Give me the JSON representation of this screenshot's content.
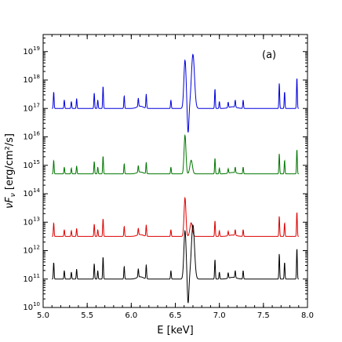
{
  "chart_data": {
    "type": "line",
    "panel_label": "(a)",
    "xlabel": "E [keV]",
    "ylabel_main": "νF",
    "ylabel_sub": "ν",
    "ylabel_unit": " [erg/cm²/s]",
    "xlim": [
      5.0,
      8.0
    ],
    "ylim_log10": [
      10,
      19.6
    ],
    "yscale": "log",
    "grid": false,
    "x_ticks": [
      5.0,
      5.5,
      6.0,
      6.5,
      7.0,
      7.5,
      8.0
    ],
    "x_tick_labels": [
      "5.0",
      "5.5",
      "6.0",
      "6.5",
      "7.0",
      "7.5",
      "8.0"
    ],
    "y_ticks_log10": [
      10,
      11,
      12,
      13,
      14,
      15,
      16,
      17,
      18,
      19
    ],
    "y_tick_base": "10",
    "y_tick_exps": [
      "10",
      "11",
      "12",
      "13",
      "14",
      "15",
      "16",
      "17",
      "18",
      "19"
    ],
    "peak_shape": {
      "narrow": [
        {
          "x": 5.12,
          "h": 0.6
        },
        {
          "x": 5.24,
          "h": 0.3
        },
        {
          "x": 5.32,
          "h": 0.25
        },
        {
          "x": 5.38,
          "h": 0.35
        },
        {
          "x": 5.58,
          "h": 0.55
        },
        {
          "x": 5.62,
          "h": 0.3
        },
        {
          "x": 5.68,
          "h": 0.8
        },
        {
          "x": 5.92,
          "h": 0.45
        },
        {
          "x": 6.08,
          "h": 0.3
        },
        {
          "x": 6.17,
          "h": 0.5
        },
        {
          "x": 6.45,
          "h": 0.3
        },
        {
          "x": 6.95,
          "h": 0.7
        },
        {
          "x": 7.0,
          "h": 0.25
        },
        {
          "x": 7.1,
          "h": 0.2
        },
        {
          "x": 7.18,
          "h": 0.25
        },
        {
          "x": 7.27,
          "h": 0.3
        },
        {
          "x": 7.68,
          "h": 0.9
        },
        {
          "x": 7.74,
          "h": 0.6
        },
        {
          "x": 7.88,
          "h": 1.1
        }
      ],
      "blend_region": [
        6.55,
        6.75
      ]
    },
    "series": [
      {
        "name": "",
        "color": "#0000dd",
        "offset_log10": 17.0,
        "amplitude": 1.0
      },
      {
        "name": "",
        "color": "#007700",
        "offset_log10": 14.7,
        "amplitude": 0.8
      },
      {
        "name": "",
        "color": "#dd0000",
        "offset_log10": 12.5,
        "amplitude": 0.8
      },
      {
        "name": "",
        "color": "#000000",
        "offset_log10": 11.0,
        "amplitude": 1.0
      }
    ]
  }
}
